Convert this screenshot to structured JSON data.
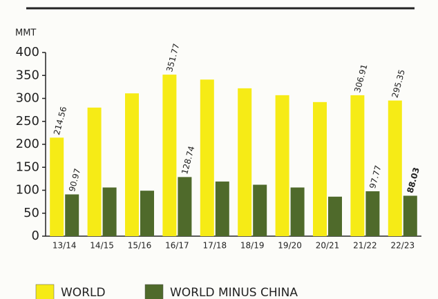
{
  "chart_data": {
    "type": "bar",
    "y_label": "MMT",
    "categories": [
      "13/14",
      "14/15",
      "15/16",
      "16/17",
      "17/18",
      "18/19",
      "19/20",
      "20/21",
      "21/22",
      "22/23"
    ],
    "series": [
      {
        "name": "WORLD",
        "color": "#f6eb16",
        "values": [
          214.56,
          280,
          311,
          351.77,
          341,
          322,
          307,
          292,
          306.91,
          295.35
        ],
        "value_labels": [
          "214.56",
          null,
          null,
          "351.77",
          null,
          null,
          null,
          null,
          "306.91",
          "295.35"
        ]
      },
      {
        "name": "WORLD MINUS CHINA",
        "color": "#4f6a2b",
        "values": [
          90.97,
          106,
          99,
          128.74,
          119,
          112,
          106,
          86,
          97.77,
          88.03
        ],
        "value_labels": [
          "90.97",
          null,
          null,
          "128.74",
          null,
          null,
          null,
          null,
          "97.77",
          "88.03"
        ]
      }
    ],
    "ylim": [
      0,
      400
    ],
    "yticks": [
      0,
      50,
      100,
      150,
      200,
      250,
      300,
      350,
      400
    ]
  }
}
